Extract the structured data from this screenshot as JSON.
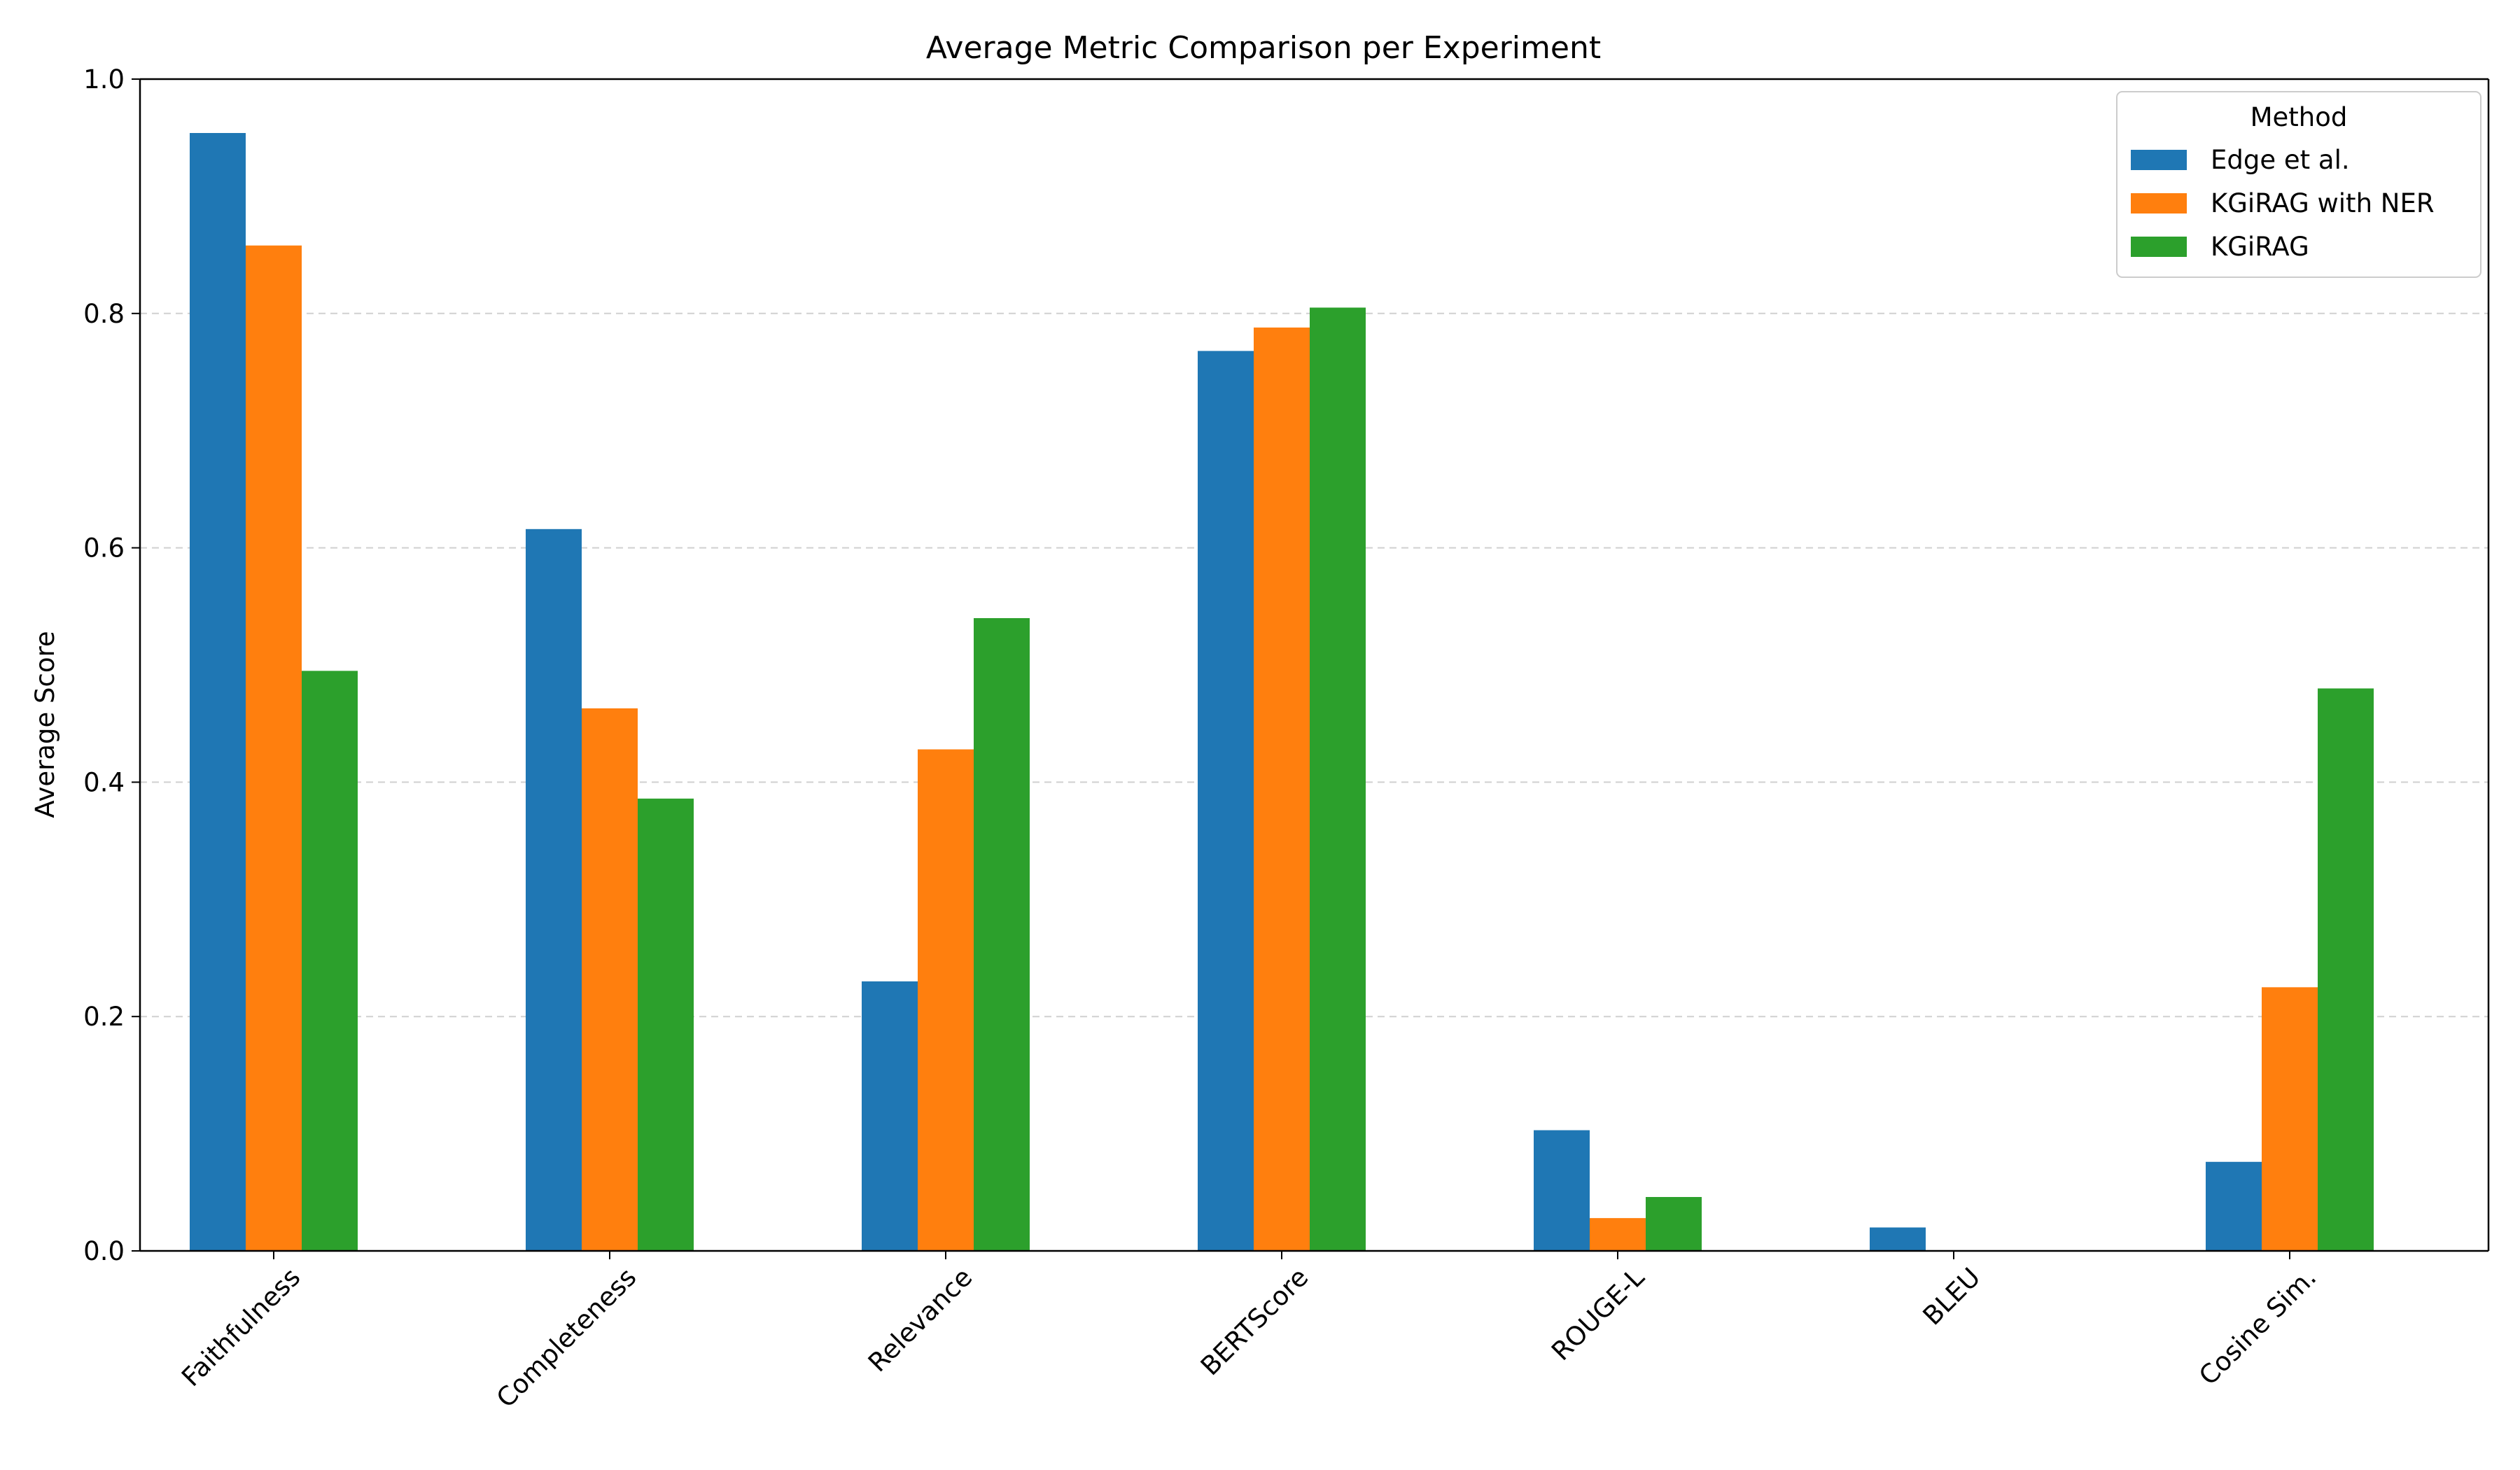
{
  "chart_data": {
    "type": "bar",
    "title": "Average Metric Comparison per Experiment",
    "xlabel": "",
    "ylabel": "Average Score",
    "categories": [
      "Faithfulness",
      "Completeness",
      "Relevance",
      "BERTScore",
      "ROUGE-L",
      "BLEU",
      "Cosine Sim."
    ],
    "series": [
      {
        "name": "Edge et al.",
        "color": "#1f77b4",
        "values": [
          0.954,
          0.616,
          0.23,
          0.768,
          0.103,
          0.02,
          0.076
        ]
      },
      {
        "name": "KGiRAG with NER",
        "color": "#ff7f0e",
        "values": [
          0.858,
          0.463,
          0.428,
          0.788,
          0.028,
          0.0,
          0.225
        ]
      },
      {
        "name": "KGiRAG",
        "color": "#2ca02c",
        "values": [
          0.495,
          0.386,
          0.54,
          0.805,
          0.046,
          0.0,
          0.48
        ]
      }
    ],
    "ylim": [
      0,
      1.0
    ],
    "yticks": [
      "0.0",
      "0.2",
      "0.4",
      "0.6",
      "0.8",
      "1.0"
    ],
    "grid": "y-dashed",
    "legend": {
      "title": "Method",
      "placement": "top-right"
    }
  }
}
